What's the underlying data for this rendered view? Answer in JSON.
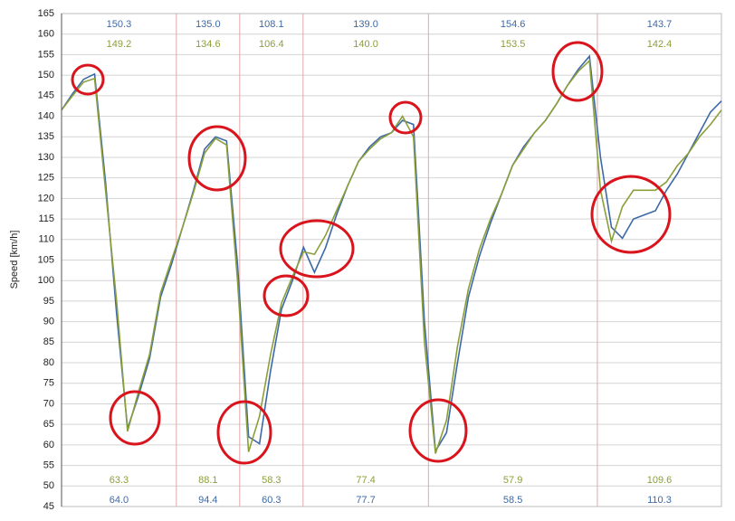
{
  "chart_data": {
    "type": "line",
    "y_label": "Speed [km/h]",
    "ylim": [
      45,
      165
    ],
    "yticks": [
      45,
      50,
      55,
      60,
      65,
      70,
      75,
      80,
      85,
      90,
      95,
      100,
      105,
      110,
      115,
      120,
      125,
      130,
      135,
      140,
      145,
      150,
      155,
      160,
      165
    ],
    "grid": true,
    "series": [
      {
        "color": "#3d69a6",
        "values": [
          141.5,
          145.5,
          149,
          150.3,
          124,
          92,
          64.0,
          72,
          81,
          96,
          104,
          113,
          122,
          132,
          135.0,
          134,
          104,
          62,
          60.3,
          78,
          93,
          100,
          108.1,
          102,
          108,
          116,
          123,
          129,
          132.5,
          135,
          136,
          139.0,
          138,
          90,
          58.5,
          63,
          80,
          96,
          106,
          114,
          121,
          128,
          132.5,
          136,
          139,
          143,
          147.5,
          151.5,
          154.6,
          130,
          113,
          110.3,
          115,
          116,
          117,
          122,
          126,
          131,
          136,
          141,
          143.7
        ],
        "max_labels": [
          "150.3",
          "135.0",
          "108.1",
          "139.0",
          "154.6",
          "143.7"
        ],
        "min_labels": [
          "64.0",
          "94.4",
          "60.3",
          "77.7",
          "58.5",
          "110.3"
        ]
      },
      {
        "color": "#8a9f3a",
        "values": [
          141.5,
          145,
          148.3,
          149.2,
          122,
          95,
          63.3,
          73,
          82,
          97,
          105,
          113,
          121.5,
          131,
          134.6,
          133,
          100,
          58.3,
          67,
          82,
          94.5,
          101,
          107,
          106.4,
          111,
          117,
          123,
          129,
          132,
          134.5,
          136,
          140,
          135,
          85,
          57.9,
          66,
          84,
          98,
          107.7,
          115,
          121,
          128,
          132,
          136,
          139,
          143,
          147.5,
          151,
          153.5,
          122,
          109.6,
          118,
          122,
          122,
          122,
          124,
          128,
          131,
          135,
          138,
          141.5
        ],
        "max_labels": [
          "149.2",
          "134.6",
          "106.4",
          "140.0",
          "153.5",
          "142.4"
        ],
        "min_labels": [
          "63.3",
          "88.1",
          "58.3",
          "77.4",
          "57.9",
          "109.6"
        ]
      }
    ]
  }
}
